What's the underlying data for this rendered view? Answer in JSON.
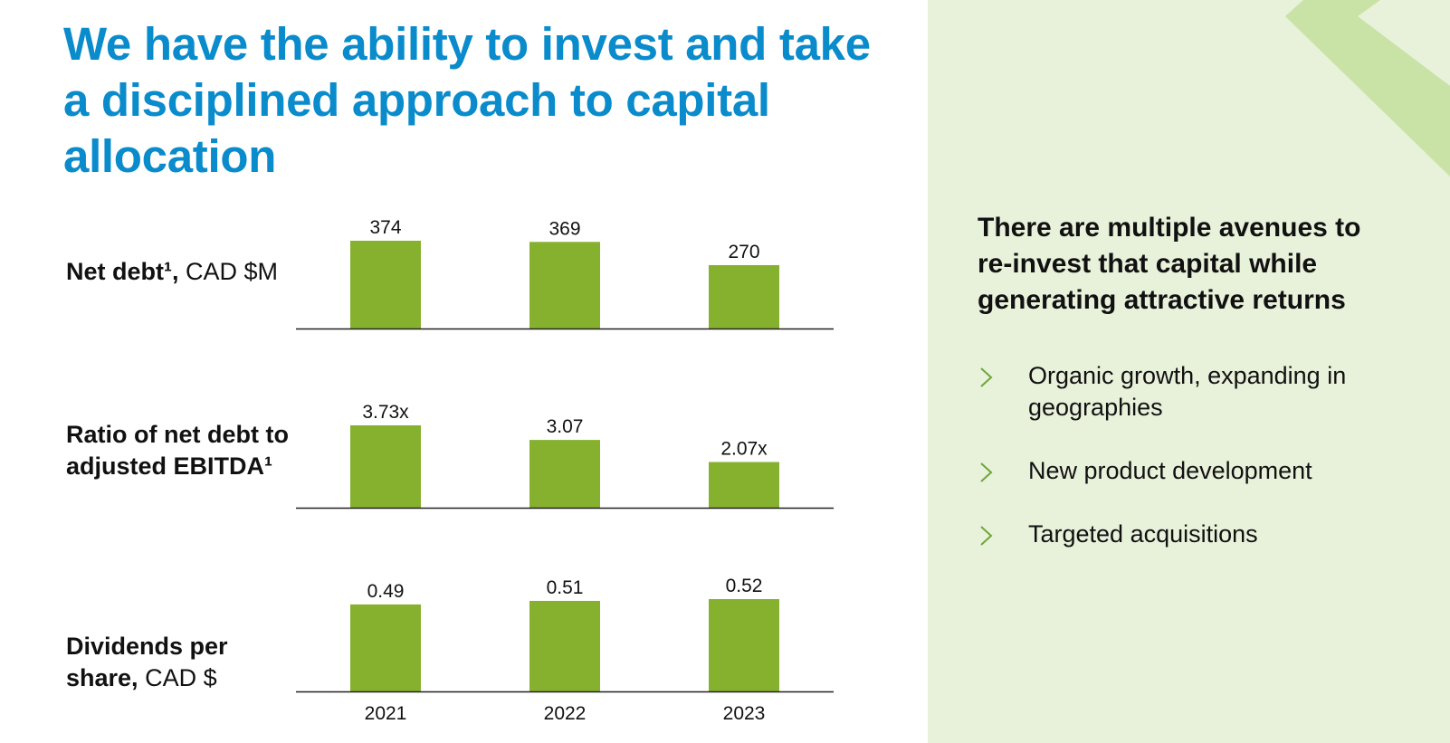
{
  "title": "We have the ability to invest and take a disciplined approach to capital allocation",
  "rows": [
    {
      "label_bold": "Net debt¹,",
      "label_rest": " CAD $M"
    },
    {
      "label_bold": "Ratio of net debt to adjusted EBITDA¹",
      "label_rest": ""
    },
    {
      "label_bold": "Dividends per share,",
      "label_rest": " CAD $"
    }
  ],
  "chart_data": [
    {
      "type": "bar",
      "categories": [
        "2021",
        "2022",
        "2023"
      ],
      "values": [
        374,
        369,
        270
      ],
      "labels": [
        "374",
        "369",
        "270"
      ],
      "title": "Net debt¹, CAD $M"
    },
    {
      "type": "bar",
      "categories": [
        "2021",
        "2022",
        "2023"
      ],
      "values": [
        3.73,
        3.07,
        2.07
      ],
      "labels": [
        "3.73x",
        "3.07",
        "2.07x"
      ],
      "title": "Ratio of net debt to adjusted EBITDA¹"
    },
    {
      "type": "bar",
      "categories": [
        "2021",
        "2022",
        "2023"
      ],
      "values": [
        0.49,
        0.51,
        0.52
      ],
      "labels": [
        "0.49",
        "0.51",
        "0.52"
      ],
      "title": "Dividends per share, CAD $"
    }
  ],
  "panel": {
    "heading": "There are multiple avenues to re-invest that capital while generating attractive returns",
    "bullets": [
      "Organic growth, expanding in geographies",
      "New product development",
      "Targeted acquisitions"
    ]
  },
  "colors": {
    "title": "#0a8bcb",
    "bar": "#86b12f",
    "panel_bg": "#e8f1da",
    "panel_accent": "#c9e2a6",
    "chevron": "#6fa63a"
  },
  "icons": {
    "bullet": "chevron-right-icon"
  }
}
